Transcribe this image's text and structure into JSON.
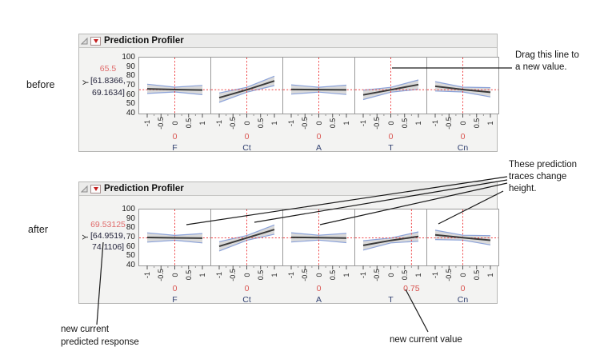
{
  "page": {
    "background": "#ffffff",
    "before_label": "before",
    "after_label": "after"
  },
  "annotations": {
    "drag_line1": "Drag this line to",
    "drag_line2": "a new value.",
    "traces_line1": "These prediction",
    "traces_line2": "traces change",
    "traces_line3": "height.",
    "response_line1": "new current",
    "response_line2": "predicted response",
    "value_text": "new current value"
  },
  "colors": {
    "dash_red": "#ef4042",
    "value_red": "#d9534f",
    "band_fill": "#d8d8d8",
    "band_edge": "#8ba2d9",
    "trace": "#3a3a3a",
    "factor_name": "#2f3f6f",
    "titlebar_bg": "#ebebea",
    "box_bg": "#f3f3f2"
  },
  "chart_data": [
    {
      "id": "before",
      "type": "line",
      "title": "Prediction Profiler",
      "response_label": "Y",
      "predicted": 65.5,
      "predicted_display": "65.5",
      "ci": [
        61.8366,
        69.1634
      ],
      "ci_display": [
        "[61.8366,",
        "69.1634]"
      ],
      "ylim": [
        40,
        100
      ],
      "xlim": [
        -1,
        1
      ],
      "y_ticks": [
        100,
        90,
        80,
        70,
        60,
        50,
        40
      ],
      "x_ticks": [
        "-1",
        "-0.5",
        "0",
        "0.5",
        "1"
      ],
      "x_tick_values": [
        -1,
        -0.5,
        0,
        0.5,
        1
      ],
      "legend": "none",
      "grid": false,
      "factors": [
        {
          "name": "F",
          "current": 0,
          "current_display": "0",
          "trace": [
            66.5,
            65.7,
            65.2
          ],
          "band_half": [
            5,
            2.6,
            5
          ]
        },
        {
          "name": "Ct",
          "current": 0,
          "current_display": "0",
          "trace": [
            57.0,
            65.5,
            75.0
          ],
          "band_half": [
            5,
            2.6,
            5
          ]
        },
        {
          "name": "A",
          "current": 0,
          "current_display": "0",
          "trace": [
            65.8,
            65.6,
            65.4
          ],
          "band_half": [
            5,
            2.6,
            5
          ]
        },
        {
          "name": "T",
          "current": 0,
          "current_display": "0",
          "trace": [
            60.0,
            65.5,
            71.0
          ],
          "band_half": [
            5,
            2.6,
            5
          ]
        },
        {
          "name": "Cn",
          "current": 0,
          "current_display": "0",
          "trace": [
            69.2,
            65.7,
            62.8
          ],
          "band_half": [
            5,
            2.6,
            5
          ]
        }
      ]
    },
    {
      "id": "after",
      "type": "line",
      "title": "Prediction Profiler",
      "response_label": "Y",
      "predicted": 69.53125,
      "predicted_display": "69.53125",
      "ci": [
        64.9519,
        74.1106
      ],
      "ci_display": [
        "[64.9519,",
        "74.1106]"
      ],
      "ylim": [
        40,
        100
      ],
      "xlim": [
        -1,
        1
      ],
      "y_ticks": [
        100,
        90,
        80,
        70,
        60,
        50,
        40
      ],
      "x_ticks": [
        "-1",
        "-0.5",
        "0",
        "0.5",
        "1"
      ],
      "x_tick_values": [
        -1,
        -0.5,
        0,
        0.5,
        1
      ],
      "legend": "none",
      "grid": false,
      "factors": [
        {
          "name": "F",
          "current": 0,
          "current_display": "0",
          "trace": [
            70.0,
            69.6,
            69.2
          ],
          "band_half": [
            5,
            2.6,
            5
          ]
        },
        {
          "name": "Ct",
          "current": 0,
          "current_display": "0",
          "trace": [
            60.5,
            69.5,
            78.5
          ],
          "band_half": [
            5,
            2.6,
            5
          ]
        },
        {
          "name": "A",
          "current": 0,
          "current_display": "0",
          "trace": [
            70.1,
            69.8,
            69.4
          ],
          "band_half": [
            5,
            2.6,
            5
          ]
        },
        {
          "name": "T",
          "current": 0.75,
          "current_display": "0.75",
          "trace": [
            61.5,
            66.8,
            71.0
          ],
          "band_half": [
            5,
            2.6,
            5
          ]
        },
        {
          "name": "Cn",
          "current": 0,
          "current_display": "0",
          "trace": [
            72.8,
            69.8,
            67.0
          ],
          "band_half": [
            5,
            2.6,
            5
          ]
        }
      ]
    }
  ]
}
